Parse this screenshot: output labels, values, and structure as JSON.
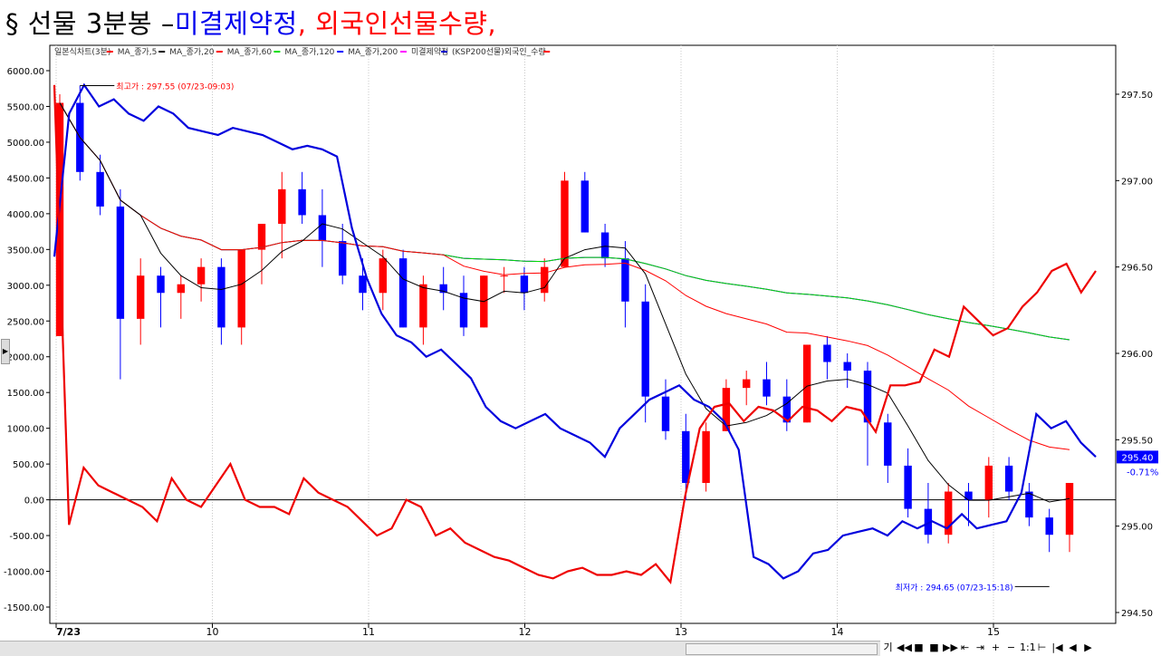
{
  "title": {
    "part1": "§ 선물 3분봉 – ",
    "part2": "미결제약정",
    "part3": ", 외국인선물수량,",
    "color1": "#000000",
    "color2": "#0000ee",
    "color3": "#ff0000"
  },
  "legend": [
    {
      "label": "일본식차트(3분)",
      "color": "#ff0000"
    },
    {
      "label": "MA_종가,5",
      "color": "#000000"
    },
    {
      "label": "MA_종가,20",
      "color": "#ff0000"
    },
    {
      "label": "MA_종가,60",
      "color": "#00dd00"
    },
    {
      "label": "MA_종가,120",
      "color": "#0000ff"
    },
    {
      "label": "MA_종가,200",
      "color": "#ff00ff"
    },
    {
      "label": "미결제약정",
      "color": "#0000cc"
    },
    {
      "label": "(KSP200선물)외국인_수량",
      "color": "#ff0000"
    }
  ],
  "chart_data": {
    "type": "candlestick",
    "left_axis": {
      "ticks": [
        "6000.00",
        "5500.00",
        "5000.00",
        "4500.00",
        "4000.00",
        "3500.00",
        "3000.00",
        "2500.00",
        "2000.00",
        "1500.00",
        "1000.00",
        "500.00",
        "0.00",
        "-500.00",
        "-1000.00",
        "-1500.00"
      ],
      "values": [
        6000,
        5500,
        5000,
        4500,
        4000,
        3500,
        3000,
        2500,
        2000,
        1500,
        1000,
        500,
        0,
        -500,
        -1000,
        -1500
      ]
    },
    "right_axis": {
      "ticks": [
        "297.50",
        "297.00",
        "296.50",
        "296.00",
        "295.50",
        "295.00",
        "294.50"
      ],
      "values": [
        297.5,
        297.0,
        296.5,
        296.0,
        295.5,
        295.0,
        294.5
      ]
    },
    "x_ticks": [
      {
        "label": "7/23",
        "x": 0
      },
      {
        "label": "10",
        "x": 10
      },
      {
        "label": "11",
        "x": 20
      },
      {
        "label": "12",
        "x": 30
      },
      {
        "label": "13",
        "x": 40
      },
      {
        "label": "14",
        "x": 50
      },
      {
        "label": "15",
        "x": 60
      }
    ],
    "last_price_label": "295.40",
    "last_change_label": "-0.71%",
    "high_annotation": "최고가 : 297.55 (07/23-09:03)",
    "low_annotation": "최저가 : 294.65 (07/23-15:18)",
    "candles": [
      {
        "o": 296.1,
        "h": 297.5,
        "l": 296.1,
        "c": 297.45
      },
      {
        "o": 297.45,
        "h": 297.55,
        "l": 297.0,
        "c": 297.05
      },
      {
        "o": 297.05,
        "h": 297.15,
        "l": 296.8,
        "c": 296.85
      },
      {
        "o": 296.85,
        "h": 296.95,
        "l": 295.85,
        "c": 296.2
      },
      {
        "o": 296.2,
        "h": 296.55,
        "l": 296.05,
        "c": 296.45
      },
      {
        "o": 296.45,
        "h": 296.5,
        "l": 296.15,
        "c": 296.35
      },
      {
        "o": 296.35,
        "h": 296.45,
        "l": 296.2,
        "c": 296.4
      },
      {
        "o": 296.4,
        "h": 296.55,
        "l": 296.3,
        "c": 296.5
      },
      {
        "o": 296.5,
        "h": 296.55,
        "l": 296.05,
        "c": 296.15
      },
      {
        "o": 296.15,
        "h": 296.6,
        "l": 296.05,
        "c": 296.6
      },
      {
        "o": 296.6,
        "h": 296.75,
        "l": 296.4,
        "c": 296.75
      },
      {
        "o": 296.75,
        "h": 297.05,
        "l": 296.55,
        "c": 296.95
      },
      {
        "o": 296.95,
        "h": 297.05,
        "l": 296.75,
        "c": 296.8
      },
      {
        "o": 296.8,
        "h": 296.95,
        "l": 296.5,
        "c": 296.65
      },
      {
        "o": 296.65,
        "h": 296.75,
        "l": 296.4,
        "c": 296.45
      },
      {
        "o": 296.45,
        "h": 296.55,
        "l": 296.25,
        "c": 296.35
      },
      {
        "o": 296.35,
        "h": 296.6,
        "l": 296.25,
        "c": 296.55
      },
      {
        "o": 296.55,
        "h": 296.6,
        "l": 296.15,
        "c": 296.15
      },
      {
        "o": 296.15,
        "h": 296.45,
        "l": 296.05,
        "c": 296.4
      },
      {
        "o": 296.4,
        "h": 296.5,
        "l": 296.25,
        "c": 296.35
      },
      {
        "o": 296.35,
        "h": 296.45,
        "l": 296.1,
        "c": 296.15
      },
      {
        "o": 296.15,
        "h": 296.45,
        "l": 296.15,
        "c": 296.45
      },
      {
        "o": 296.45,
        "h": 296.5,
        "l": 296.35,
        "c": 296.45
      },
      {
        "o": 296.45,
        "h": 296.5,
        "l": 296.25,
        "c": 296.35
      },
      {
        "o": 296.35,
        "h": 296.55,
        "l": 296.3,
        "c": 296.5
      },
      {
        "o": 296.5,
        "h": 297.05,
        "l": 296.5,
        "c": 297.0
      },
      {
        "o": 297.0,
        "h": 297.05,
        "l": 296.7,
        "c": 296.7
      },
      {
        "o": 296.7,
        "h": 296.75,
        "l": 296.5,
        "c": 296.55
      },
      {
        "o": 296.55,
        "h": 296.65,
        "l": 296.15,
        "c": 296.3
      },
      {
        "o": 296.3,
        "h": 296.4,
        "l": 295.6,
        "c": 295.75
      },
      {
        "o": 295.75,
        "h": 295.85,
        "l": 295.5,
        "c": 295.55
      },
      {
        "o": 295.55,
        "h": 295.65,
        "l": 295.15,
        "c": 295.25
      },
      {
        "o": 295.25,
        "h": 295.6,
        "l": 295.2,
        "c": 295.55
      },
      {
        "o": 295.55,
        "h": 295.85,
        "l": 295.55,
        "c": 295.8
      },
      {
        "o": 295.8,
        "h": 295.9,
        "l": 295.7,
        "c": 295.85
      },
      {
        "o": 295.85,
        "h": 295.95,
        "l": 295.7,
        "c": 295.75
      },
      {
        "o": 295.75,
        "h": 295.85,
        "l": 295.55,
        "c": 295.6
      },
      {
        "o": 295.6,
        "h": 296.05,
        "l": 295.6,
        "c": 296.05
      },
      {
        "o": 296.05,
        "h": 296.1,
        "l": 295.85,
        "c": 295.95
      },
      {
        "o": 295.95,
        "h": 296.0,
        "l": 295.8,
        "c": 295.9
      },
      {
        "o": 295.9,
        "h": 295.95,
        "l": 295.35,
        "c": 295.6
      },
      {
        "o": 295.6,
        "h": 295.65,
        "l": 295.25,
        "c": 295.35
      },
      {
        "o": 295.35,
        "h": 295.45,
        "l": 295.05,
        "c": 295.1
      },
      {
        "o": 295.1,
        "h": 295.25,
        "l": 294.9,
        "c": 294.95
      },
      {
        "o": 294.95,
        "h": 295.25,
        "l": 294.9,
        "c": 295.2
      },
      {
        "o": 295.2,
        "h": 295.25,
        "l": 295.0,
        "c": 295.15
      },
      {
        "o": 295.15,
        "h": 295.4,
        "l": 295.05,
        "c": 295.35
      },
      {
        "o": 295.35,
        "h": 295.4,
        "l": 295.15,
        "c": 295.2
      },
      {
        "o": 295.2,
        "h": 295.25,
        "l": 295.0,
        "c": 295.05
      },
      {
        "o": 295.05,
        "h": 295.1,
        "l": 294.85,
        "c": 294.95
      },
      {
        "o": 294.95,
        "h": 295.25,
        "l": 294.85,
        "c": 295.25
      }
    ],
    "open_interest": [
      3400,
      5400,
      5800,
      5500,
      5600,
      5400,
      5300,
      5500,
      5400,
      5200,
      5150,
      5100,
      5200,
      5150,
      5100,
      5000,
      4900,
      4950,
      4900,
      4800,
      3800,
      3100,
      2600,
      2300,
      2200,
      2000,
      2100,
      1900,
      1700,
      1300,
      1100,
      1000,
      1100,
      1200,
      1000,
      900,
      800,
      600,
      1000,
      1200,
      1400,
      1500,
      1600,
      1400,
      1300,
      1100,
      700,
      -800,
      -900,
      -1100,
      -1000,
      -750,
      -700,
      -500,
      -450,
      -400,
      -500,
      -300,
      -400,
      -300,
      -400,
      -200,
      -400,
      -350,
      -300,
      100,
      1200,
      1000,
      1100,
      800,
      600
    ],
    "foreign_qty": [
      5800,
      -350,
      450,
      200,
      100,
      0,
      -100,
      -300,
      300,
      0,
      -100,
      200,
      500,
      0,
      -100,
      -100,
      -200,
      300,
      100,
      0,
      -100,
      -300,
      -500,
      -400,
      0,
      -100,
      -500,
      -400,
      -600,
      -700,
      -800,
      -850,
      -950,
      -1050,
      -1100,
      -1000,
      -950,
      -1050,
      -1050,
      -1000,
      -1050,
      -900,
      -1150,
      50,
      1000,
      1300,
      1350,
      1100,
      1300,
      1250,
      1100,
      1300,
      1250,
      1100,
      1300,
      1250,
      950,
      1600,
      1600,
      1650,
      2100,
      2000,
      2700,
      2500,
      2300,
      2400,
      2700,
      2900,
      3200,
      3300,
      2900,
      3200
    ]
  },
  "toolbar": {
    "btn1": "기",
    "btn2": "◀◀",
    "btn3": "■",
    "btn4": "■",
    "btn5": "▶▶",
    "btn6": "⇤",
    "btn7": "⇥",
    "btn8": "+",
    "btn9": "−",
    "btn10": "1:1",
    "btn11": "⊢",
    "btn12": "|◀",
    "btn13": "◀",
    "btn14": "▶"
  }
}
